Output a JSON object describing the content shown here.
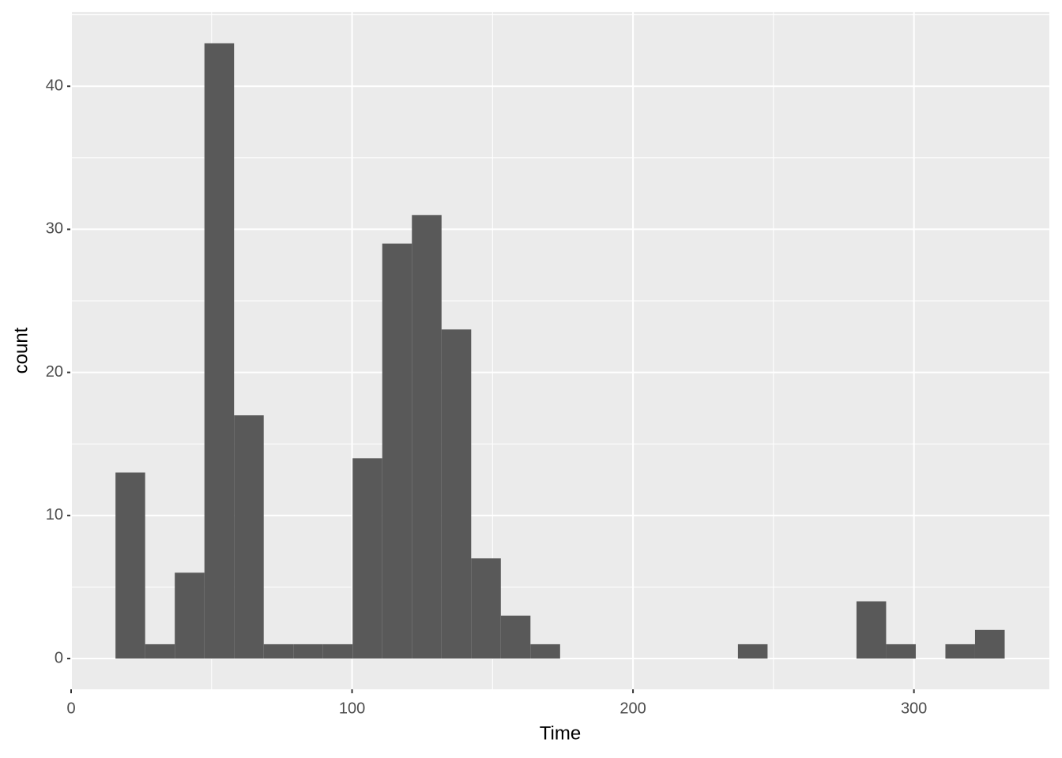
{
  "chart_data": {
    "type": "histogram",
    "x_label": "Time",
    "y_label": "count",
    "bins": [
      15.8,
      26.35,
      36.9,
      47.45,
      58,
      68.55,
      79.1,
      89.65,
      100.2,
      110.75,
      121.3,
      131.85,
      142.4,
      152.95,
      163.5,
      174.05,
      184.6,
      195.15,
      205.7,
      216.25,
      226.8,
      237.35,
      247.9,
      258.45,
      269,
      279.55,
      290.1,
      300.65,
      311.2,
      321.75,
      332.3
    ],
    "values": [
      13,
      1,
      6,
      43,
      17,
      1,
      1,
      1,
      14,
      29,
      31,
      23,
      7,
      3,
      1,
      0,
      0,
      0,
      0,
      0,
      0,
      1,
      0,
      0,
      0,
      4,
      1,
      0,
      1,
      2
    ],
    "color": "#595959",
    "xlim": [
      0,
      348.2
    ],
    "xticks": [
      0,
      100,
      200,
      300
    ],
    "ylim": [
      -2.15,
      45.2
    ],
    "yticks": [
      0,
      10,
      20,
      30,
      40
    ],
    "grid": true
  }
}
